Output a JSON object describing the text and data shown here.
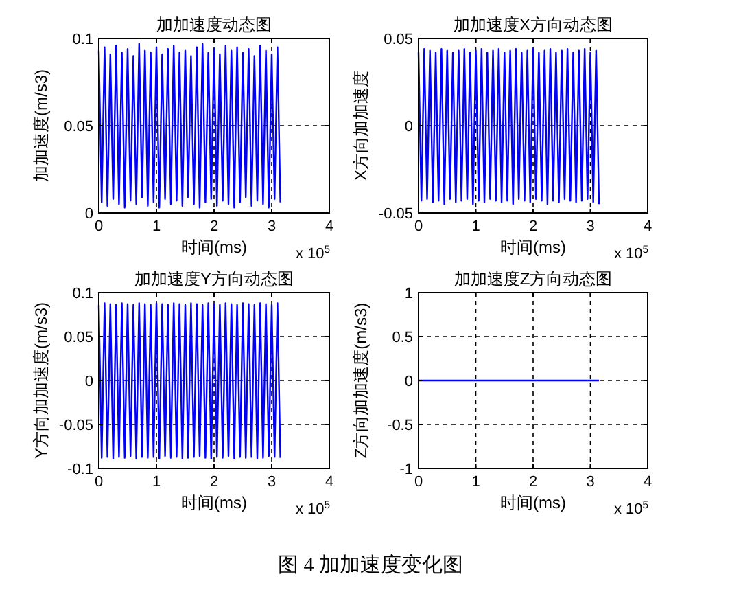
{
  "chart_data": [
    {
      "type": "line",
      "title": "加加速度动态图",
      "xlabel": "时间(ms)",
      "ylabel": "加加速度(m/s3)",
      "x": [
        0,
        0.05,
        0.1,
        0.15,
        0.2,
        0.25,
        0.3,
        0.35,
        0.4,
        0.45,
        0.5,
        0.55,
        0.6,
        0.65,
        0.7,
        0.75,
        0.8,
        0.85,
        0.9,
        0.95,
        1,
        1.05,
        1.1,
        1.15,
        1.2,
        1.25,
        1.3,
        1.35,
        1.4,
        1.45,
        1.5,
        1.55,
        1.6,
        1.65,
        1.7,
        1.75,
        1.8,
        1.85,
        1.9,
        1.95,
        2,
        2.05,
        2.1,
        2.15,
        2.2,
        2.25,
        2.3,
        2.35,
        2.4,
        2.45,
        2.5,
        2.55,
        2.6,
        2.65,
        2.7,
        2.75,
        2.8,
        2.85,
        2.9,
        2.95,
        3,
        3.05,
        3.1,
        3.15
      ],
      "series": [
        {
          "color": "#0000ff",
          "values": [
            0.093,
            0.006,
            0.095,
            0.004,
            0.091,
            0.008,
            0.096,
            0.005,
            0.092,
            0.003,
            0.094,
            0.007,
            0.09,
            0.005,
            0.097,
            0.009,
            0.093,
            0.004,
            0.092,
            0.006,
            0.095,
            0.003,
            0.091,
            0.008,
            0.094,
            0.005,
            0.096,
            0.007,
            0.092,
            0.004,
            0.093,
            0.009,
            0.09,
            0.005,
            0.095,
            0.003,
            0.097,
            0.006,
            0.092,
            0.008,
            0.094,
            0.004,
            0.091,
            0.007,
            0.096,
            0.005,
            0.093,
            0.003,
            0.095,
            0.006,
            0.092,
            0.009,
            0.094,
            0.004,
            0.09,
            0.007,
            0.096,
            0.005,
            0.093,
            0.003,
            0.091,
            0.008,
            0.095,
            0.006
          ]
        }
      ],
      "xlim": [
        0,
        4
      ],
      "xticks": [
        0,
        1,
        2,
        3,
        4
      ],
      "ylim": [
        0,
        0.1
      ],
      "yticks": [
        0,
        0.05,
        0.1
      ],
      "grid": true,
      "annotations": [
        "x 10$^{5}$"
      ]
    },
    {
      "type": "line",
      "title": "加加速度X方向动态图",
      "xlabel": "时间(ms)",
      "ylabel": "X方向加加速度",
      "x": [
        0,
        0.05,
        0.1,
        0.15,
        0.2,
        0.25,
        0.3,
        0.35,
        0.4,
        0.45,
        0.5,
        0.55,
        0.6,
        0.65,
        0.7,
        0.75,
        0.8,
        0.85,
        0.9,
        0.95,
        1,
        1.05,
        1.1,
        1.15,
        1.2,
        1.25,
        1.3,
        1.35,
        1.4,
        1.45,
        1.5,
        1.55,
        1.6,
        1.65,
        1.7,
        1.75,
        1.8,
        1.85,
        1.9,
        1.95,
        2,
        2.05,
        2.1,
        2.15,
        2.2,
        2.25,
        2.3,
        2.35,
        2.4,
        2.45,
        2.5,
        2.55,
        2.6,
        2.65,
        2.7,
        2.75,
        2.8,
        2.85,
        2.9,
        2.95,
        3,
        3.05,
        3.1,
        3.15
      ],
      "series": [
        {
          "color": "#0000ff",
          "values": [
            0.042,
            -0.043,
            0.044,
            -0.042,
            0.043,
            -0.044,
            0.042,
            -0.043,
            0.044,
            -0.045,
            0.043,
            -0.042,
            0.042,
            -0.044,
            0.043,
            -0.043,
            0.044,
            -0.042,
            0.042,
            -0.045,
            0.043,
            -0.043,
            0.044,
            -0.044,
            0.042,
            -0.042,
            0.043,
            -0.043,
            0.044,
            -0.044,
            0.042,
            -0.043,
            0.043,
            -0.045,
            0.044,
            -0.042,
            0.042,
            -0.043,
            0.043,
            -0.044,
            0.044,
            -0.042,
            0.042,
            -0.043,
            0.043,
            -0.045,
            0.044,
            -0.043,
            0.042,
            -0.044,
            0.043,
            -0.042,
            0.044,
            -0.043,
            0.042,
            -0.044,
            0.043,
            -0.043,
            0.044,
            -0.042,
            0.042,
            -0.044,
            0.043,
            -0.045
          ]
        }
      ],
      "xlim": [
        0,
        4
      ],
      "xticks": [
        0,
        1,
        2,
        3,
        4
      ],
      "ylim": [
        -0.05,
        0.05
      ],
      "yticks": [
        -0.05,
        0,
        0.05
      ],
      "grid": true,
      "annotations": [
        "x 10$^{5}$"
      ]
    },
    {
      "type": "line",
      "title": "加加速度Y方向动态图",
      "xlabel": "时间(ms)",
      "ylabel": "Y方向加加速度(m/s3)",
      "x": [
        0,
        0.05,
        0.1,
        0.15,
        0.2,
        0.25,
        0.3,
        0.35,
        0.4,
        0.45,
        0.5,
        0.55,
        0.6,
        0.65,
        0.7,
        0.75,
        0.8,
        0.85,
        0.9,
        0.95,
        1,
        1.05,
        1.1,
        1.15,
        1.2,
        1.25,
        1.3,
        1.35,
        1.4,
        1.45,
        1.5,
        1.55,
        1.6,
        1.65,
        1.7,
        1.75,
        1.8,
        1.85,
        1.9,
        1.95,
        2,
        2.05,
        2.1,
        2.15,
        2.2,
        2.25,
        2.3,
        2.35,
        2.4,
        2.45,
        2.5,
        2.55,
        2.6,
        2.65,
        2.7,
        2.75,
        2.8,
        2.85,
        2.9,
        2.95,
        3,
        3.05,
        3.1,
        3.15
      ],
      "series": [
        {
          "color": "#0000ff",
          "values": [
            0.086,
            -0.088,
            0.088,
            -0.087,
            0.087,
            -0.089,
            0.086,
            -0.087,
            0.088,
            -0.088,
            0.087,
            -0.086,
            0.086,
            -0.089,
            0.088,
            -0.087,
            0.087,
            -0.088,
            0.086,
            -0.087,
            0.088,
            -0.089,
            0.087,
            -0.086,
            0.086,
            -0.088,
            0.088,
            -0.087,
            0.087,
            -0.089,
            0.086,
            -0.088,
            0.088,
            -0.087,
            0.087,
            -0.086,
            0.086,
            -0.088,
            0.088,
            -0.089,
            0.087,
            -0.087,
            0.086,
            -0.088,
            0.088,
            -0.086,
            0.087,
            -0.089,
            0.086,
            -0.087,
            0.088,
            -0.088,
            0.087,
            -0.087,
            0.086,
            -0.089,
            0.088,
            -0.088,
            0.087,
            -0.086,
            0.086,
            -0.087,
            0.088,
            -0.088
          ]
        }
      ],
      "xlim": [
        0,
        4
      ],
      "xticks": [
        0,
        1,
        2,
        3,
        4
      ],
      "ylim": [
        -0.1,
        0.1
      ],
      "yticks": [
        -0.1,
        -0.05,
        0,
        0.05,
        0.1
      ],
      "grid": true,
      "annotations": [
        "x 10$^{5}$"
      ]
    },
    {
      "type": "line",
      "title": "加加速度Z方向动态图",
      "xlabel": "时间(ms)",
      "ylabel": "Z方向加加速度(m/s3)",
      "series": [
        {
          "color": "#0000ff",
          "x": [
            0,
            3.15
          ],
          "values": [
            0,
            0
          ]
        }
      ],
      "xlim": [
        0,
        4
      ],
      "xticks": [
        0,
        1,
        2,
        3,
        4
      ],
      "ylim": [
        -1,
        1
      ],
      "yticks": [
        -1,
        -0.5,
        0,
        0.5,
        1
      ],
      "grid": true,
      "annotations": [
        "x 10$^{5}$",
        "图 4  加加速度变化图"
      ]
    }
  ]
}
